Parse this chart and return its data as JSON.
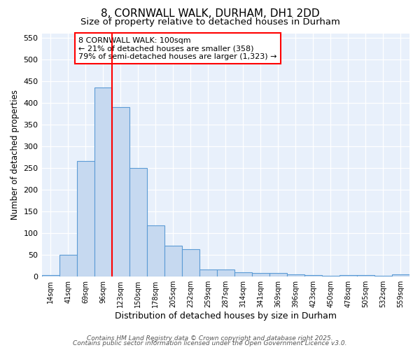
{
  "title": "8, CORNWALL WALK, DURHAM, DH1 2DD",
  "subtitle": "Size of property relative to detached houses in Durham",
  "xlabel": "Distribution of detached houses by size in Durham",
  "ylabel": "Number of detached properties",
  "categories": [
    "14sqm",
    "41sqm",
    "69sqm",
    "96sqm",
    "123sqm",
    "150sqm",
    "178sqm",
    "205sqm",
    "232sqm",
    "259sqm",
    "287sqm",
    "314sqm",
    "341sqm",
    "369sqm",
    "396sqm",
    "423sqm",
    "450sqm",
    "478sqm",
    "505sqm",
    "532sqm",
    "559sqm"
  ],
  "values": [
    3,
    50,
    265,
    435,
    390,
    250,
    117,
    70,
    62,
    15,
    15,
    10,
    8,
    7,
    5,
    2,
    1,
    2,
    2,
    1,
    4
  ],
  "bar_color": "#c6d9f0",
  "bar_edge_color": "#5b9bd5",
  "vline_x": 3,
  "vline_color": "red",
  "ylim": [
    0,
    560
  ],
  "yticks": [
    0,
    50,
    100,
    150,
    200,
    250,
    300,
    350,
    400,
    450,
    500,
    550
  ],
  "annotation_text": "8 CORNWALL WALK: 100sqm\n← 21% of detached houses are smaller (358)\n79% of semi-detached houses are larger (1,323) →",
  "annotation_box_color": "white",
  "annotation_box_edge_color": "red",
  "footer_line1": "Contains HM Land Registry data © Crown copyright and database right 2025.",
  "footer_line2": "Contains public sector information licensed under the Open Government Licence v3.0.",
  "background_color": "#e8f0fb",
  "title_fontsize": 11,
  "subtitle_fontsize": 9.5,
  "annotation_fontsize": 8,
  "xlabel_fontsize": 9,
  "ylabel_fontsize": 8.5,
  "ytick_fontsize": 8,
  "xtick_fontsize": 7,
  "footer_fontsize": 6.5
}
